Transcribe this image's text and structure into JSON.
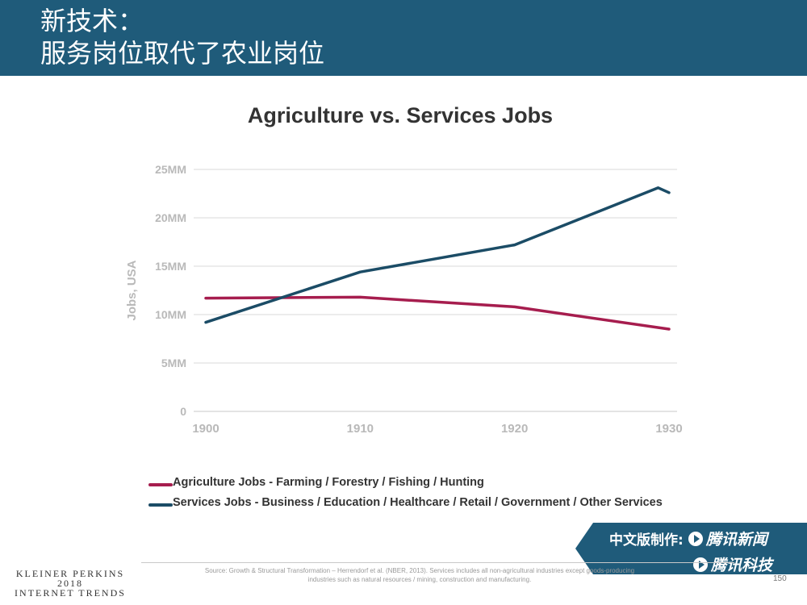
{
  "slide": {
    "title_lines": [
      "新技术：",
      "服务岗位取代了农业岗位"
    ],
    "page_number": "150",
    "brand_lines": [
      "KLEINER PERKINS",
      "2018",
      "INTERNET TRENDS"
    ],
    "source_note": "Source: Growth & Structural Transformation – Herrendorf et al. (NBER, 2013). Services includes all non-agricultural industries except goods-producing industries such as natural resources / mining, construction and manufacturing.",
    "credit": {
      "prefix": "中文版制作:",
      "brand_1": "腾讯新闻",
      "brand_2": "腾讯科技"
    },
    "colors": {
      "header_bg": "#1f5b7a",
      "agriculture": "#a61d4e",
      "services": "#1b4c66",
      "axis_text": "#b9b9b9",
      "gridline": "#d9d9d9"
    }
  },
  "chart_data": {
    "type": "line",
    "title": "Agriculture vs. Services Jobs",
    "xlabel": "",
    "ylabel": "Jobs, USA",
    "xlim": [
      1900,
      1930
    ],
    "ylim": [
      0,
      25
    ],
    "x_ticks": [
      1900,
      1910,
      1920,
      1930
    ],
    "x_tick_labels": [
      "1900",
      "1910",
      "1920",
      "1930"
    ],
    "y_ticks": [
      0,
      5,
      10,
      15,
      20,
      25
    ],
    "y_tick_labels": [
      "0",
      "5MM",
      "10MM",
      "15MM",
      "20MM",
      "25MM"
    ],
    "grid": true,
    "legend_position": "bottom-left",
    "series": [
      {
        "name": "Agriculture Jobs - Farming / Forestry / Fishing / Hunting",
        "color": "#a61d4e",
        "x": [
          1900,
          1910,
          1920,
          1930
        ],
        "y": [
          11.7,
          11.8,
          10.8,
          8.5
        ]
      },
      {
        "name": "Services Jobs - Business / Education / Healthcare / Retail / Government / Other Services",
        "color": "#1b4c66",
        "x": [
          1900,
          1910,
          1920,
          1929.3,
          1930
        ],
        "y": [
          9.2,
          14.4,
          17.2,
          23.1,
          22.6
        ]
      }
    ]
  }
}
